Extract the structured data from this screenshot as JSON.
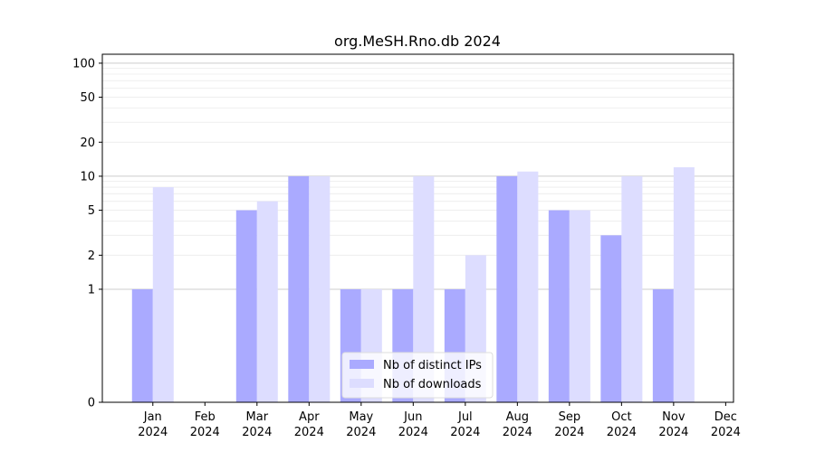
{
  "chart_data": {
    "type": "bar",
    "title": "org.MeSH.Rno.db 2024",
    "xlabel": "",
    "ylabel": "",
    "yscale": "symlog",
    "ylim": [
      0,
      120
    ],
    "yticks": [
      0,
      1,
      2,
      5,
      10,
      20,
      50,
      100
    ],
    "grid": "horizontal",
    "legend_position": "lower-center",
    "categories": [
      [
        "Jan",
        "2024"
      ],
      [
        "Feb",
        "2024"
      ],
      [
        "Mar",
        "2024"
      ],
      [
        "Apr",
        "2024"
      ],
      [
        "May",
        "2024"
      ],
      [
        "Jun",
        "2024"
      ],
      [
        "Jul",
        "2024"
      ],
      [
        "Aug",
        "2024"
      ],
      [
        "Sep",
        "2024"
      ],
      [
        "Oct",
        "2024"
      ],
      [
        "Nov",
        "2024"
      ],
      [
        "Dec",
        "2024"
      ]
    ],
    "series": [
      {
        "name": "Nb of distinct IPs",
        "color": "#aaaaff",
        "values": [
          1,
          0,
          5,
          10,
          1,
          1,
          1,
          10,
          5,
          3,
          1,
          0
        ]
      },
      {
        "name": "Nb of downloads",
        "color": "#ddddff",
        "values": [
          8,
          0,
          6,
          10,
          1,
          10,
          2,
          11,
          5,
          10,
          12,
          0
        ]
      }
    ]
  }
}
